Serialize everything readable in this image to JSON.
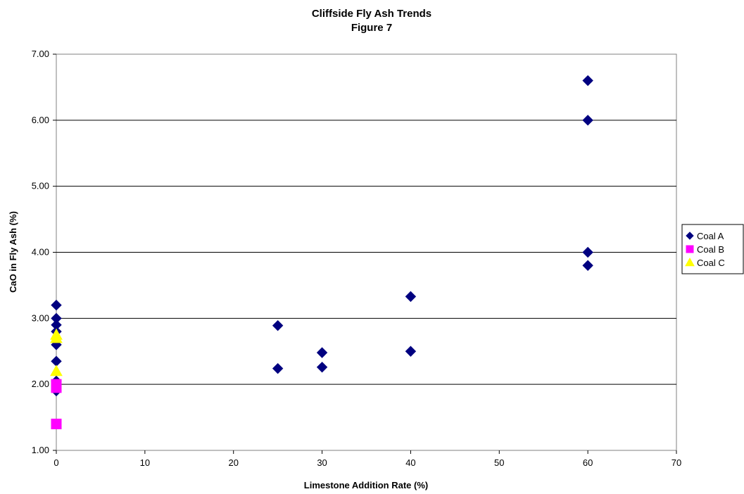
{
  "chart_data": {
    "type": "scatter",
    "title": "Cliffside Fly Ash Trends",
    "subtitle": "Figure 7",
    "xlabel": "Limestone Addition Rate (%)",
    "ylabel": "CaO in Fly Ash (%)",
    "xlim": [
      0,
      70
    ],
    "ylim": [
      1.0,
      7.0
    ],
    "x_ticks": [
      0,
      10,
      20,
      30,
      40,
      50,
      60,
      70
    ],
    "y_ticks": [
      1.0,
      2.0,
      3.0,
      4.0,
      5.0,
      6.0,
      7.0
    ],
    "x_tick_labels": [
      "0",
      "10",
      "20",
      "30",
      "40",
      "50",
      "60",
      "70"
    ],
    "y_tick_labels": [
      "1.00",
      "2.00",
      "3.00",
      "4.00",
      "5.00",
      "6.00",
      "7.00"
    ],
    "grid": "horizontal major gridlines",
    "legend_position": "right",
    "series": [
      {
        "name": "Coal A",
        "marker": "diamond",
        "color": "#000080",
        "points": [
          [
            0,
            3.2
          ],
          [
            0,
            3.0
          ],
          [
            0,
            2.9
          ],
          [
            0,
            2.8
          ],
          [
            0,
            2.6
          ],
          [
            0,
            2.35
          ],
          [
            0,
            2.05
          ],
          [
            0,
            1.9
          ],
          [
            25,
            2.89
          ],
          [
            25,
            2.24
          ],
          [
            30,
            2.48
          ],
          [
            30,
            2.26
          ],
          [
            40,
            3.33
          ],
          [
            40,
            2.5
          ],
          [
            60,
            6.6
          ],
          [
            60,
            6.0
          ],
          [
            60,
            4.0
          ],
          [
            60,
            3.8
          ]
        ]
      },
      {
        "name": "Coal B",
        "marker": "square",
        "color": "#FF00FF",
        "points": [
          [
            0,
            2.0
          ],
          [
            0,
            1.95
          ],
          [
            0,
            1.4
          ]
        ]
      },
      {
        "name": "Coal C",
        "marker": "triangle",
        "color": "#FFFF00",
        "points": [
          [
            0,
            2.75
          ],
          [
            0,
            2.7
          ],
          [
            0,
            2.2
          ]
        ]
      }
    ]
  }
}
